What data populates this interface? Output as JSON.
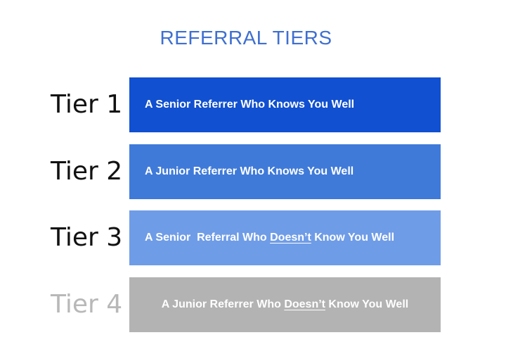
{
  "title": "REFERRAL TIERS",
  "colors": {
    "title": "#3f6fd0",
    "tier1_box": "#1150d0",
    "tier2_box": "#3f7ad9",
    "tier3_box": "#6f9ce7",
    "tier4_box": "#b3b3b3",
    "label_active": "#111111",
    "label_inactive": "#b8b8b8"
  },
  "tiers": [
    {
      "label": "Tier 1",
      "text_before": "A Senior Referrer Who Knows You Well",
      "text_underlined": "",
      "text_after": ""
    },
    {
      "label": "Tier 2",
      "text_before": "A Junior Referrer Who Knows You Well",
      "text_underlined": "",
      "text_after": ""
    },
    {
      "label": "Tier 3",
      "text_before": "A Senior  Referral Who ",
      "text_underlined": "Doesn’t",
      "text_after": " Know You Well"
    },
    {
      "label": "Tier 4",
      "text_before": "A Junior Referrer Who ",
      "text_underlined": "Doesn’t",
      "text_after": " Know You Well"
    }
  ]
}
